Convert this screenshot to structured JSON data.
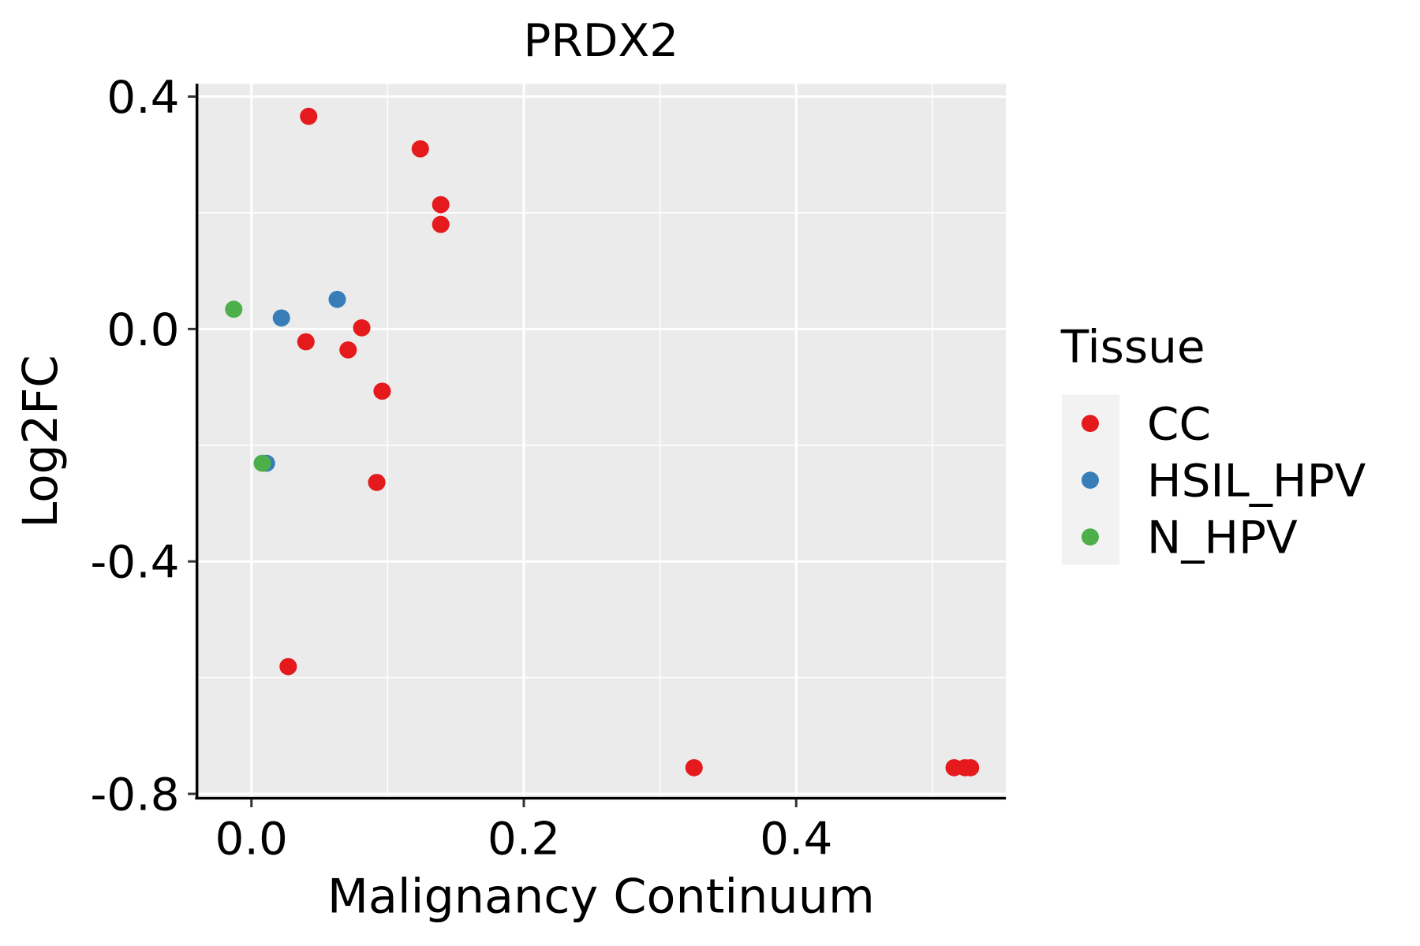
{
  "chart_data": {
    "type": "scatter",
    "title": "PRDX2",
    "xlabel": "Malignancy Continuum",
    "ylabel": "Log2FC",
    "xlim": [
      -0.04,
      0.554
    ],
    "ylim": [
      -0.806,
      0.422
    ],
    "xticks": [
      {
        "value": 0.0,
        "label": "0.0"
      },
      {
        "value": 0.2,
        "label": "0.2"
      },
      {
        "value": 0.4,
        "label": "0.4"
      }
    ],
    "yticks": [
      {
        "value": 0.4,
        "label": "0.4"
      },
      {
        "value": 0.0,
        "label": "0.0"
      },
      {
        "value": -0.4,
        "label": "-0.4"
      },
      {
        "value": -0.8,
        "label": "-0.8"
      }
    ],
    "x_minor": [
      0.1,
      0.3,
      0.5
    ],
    "y_minor": [
      0.2,
      -0.2,
      -0.6
    ],
    "grid": true,
    "legend": {
      "title": "Tissue",
      "placement": "right",
      "entries": [
        {
          "label": "CC",
          "color": "#E41A1C"
        },
        {
          "label": "HSIL_HPV",
          "color": "#377EB8"
        },
        {
          "label": "N_HPV",
          "color": "#4DAF4A"
        }
      ]
    },
    "series": [
      {
        "name": "CC",
        "color": "#E41A1C",
        "points": [
          [
            0.042,
            0.366
          ],
          [
            0.124,
            0.31
          ],
          [
            0.139,
            0.214
          ],
          [
            0.139,
            0.18
          ],
          [
            0.081,
            0.002
          ],
          [
            0.04,
            -0.022
          ],
          [
            0.071,
            -0.036
          ],
          [
            0.096,
            -0.107
          ],
          [
            0.092,
            -0.264
          ],
          [
            0.027,
            -0.581
          ],
          [
            0.325,
            -0.755
          ],
          [
            0.516,
            -0.755
          ],
          [
            0.524,
            -0.755
          ],
          [
            0.528,
            -0.755
          ]
        ]
      },
      {
        "name": "HSIL_HPV",
        "color": "#377EB8",
        "points": [
          [
            0.022,
            0.019
          ],
          [
            0.063,
            0.051
          ],
          [
            0.011,
            -0.231
          ]
        ]
      },
      {
        "name": "N_HPV",
        "color": "#4DAF4A",
        "points": [
          [
            -0.013,
            0.034
          ],
          [
            0.008,
            -0.231
          ]
        ]
      }
    ]
  }
}
